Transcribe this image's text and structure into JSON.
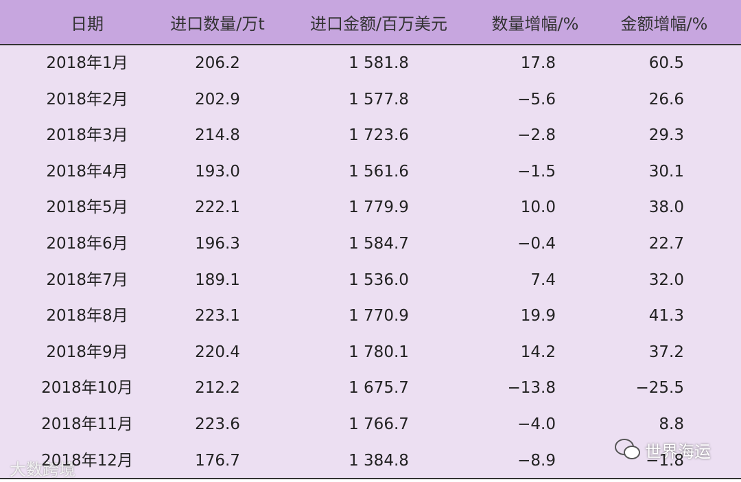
{
  "table": {
    "header": [
      "日期",
      "进口数量/万t",
      "进口金额/百万美元",
      "数量增幅/%",
      "金额增幅/%"
    ],
    "rows": [
      [
        "2018年1月",
        "206.2",
        "1 581.8",
        "17.8",
        "60.5"
      ],
      [
        "2018年2月",
        "202.9",
        "1 577.8",
        "−5.6",
        "26.6"
      ],
      [
        "2018年3月",
        "214.8",
        "1 723.6",
        "−2.8",
        "29.3"
      ],
      [
        "2018年4月",
        "193.0",
        "1 561.6",
        "−1.5",
        "30.1"
      ],
      [
        "2018年5月",
        "222.1",
        "1 779.9",
        "10.0",
        "38.0"
      ],
      [
        "2018年6月",
        "196.3",
        "1 584.7",
        "−0.4",
        "22.7"
      ],
      [
        "2018年7月",
        "189.1",
        "1 536.0",
        "7.4",
        "32.0"
      ],
      [
        "2018年8月",
        "223.1",
        "1 770.9",
        "19.9",
        "41.3"
      ],
      [
        "2018年9月",
        "220.4",
        "1 780.1",
        "14.2",
        "37.2"
      ],
      [
        "2018年10月",
        "212.2",
        "1 675.7",
        "−13.8",
        "−25.5"
      ],
      [
        "2018年11月",
        "223.6",
        "1 766.7",
        "−4.0",
        "8.8"
      ],
      [
        "2018年12月",
        "176.7",
        "1 384.8",
        "−8.9",
        "−1.8"
      ]
    ]
  },
  "watermarks": {
    "left": "大数跨境",
    "right": "世界海运"
  }
}
